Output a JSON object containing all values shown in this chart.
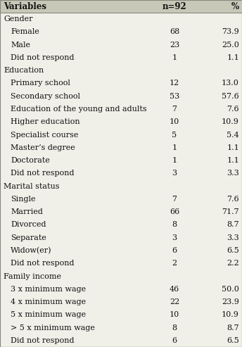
{
  "header": [
    "Variables",
    "n=92",
    "%"
  ],
  "rows": [
    {
      "label": "Gender",
      "indent": 0,
      "n": "",
      "pct": ""
    },
    {
      "label": "Female",
      "indent": 1,
      "n": "68",
      "pct": "73.9"
    },
    {
      "label": "Male",
      "indent": 1,
      "n": "23",
      "pct": "25.0"
    },
    {
      "label": "Did not respond",
      "indent": 1,
      "n": "1",
      "pct": "1.1"
    },
    {
      "label": "Education",
      "indent": 0,
      "n": "",
      "pct": ""
    },
    {
      "label": "Primary school",
      "indent": 1,
      "n": "12",
      "pct": "13.0"
    },
    {
      "label": "Secondary school",
      "indent": 1,
      "n": "53",
      "pct": "57.6"
    },
    {
      "label": "Education of the young and adults",
      "indent": 1,
      "n": "7",
      "pct": "7.6"
    },
    {
      "label": "Higher education",
      "indent": 1,
      "n": "10",
      "pct": "10.9"
    },
    {
      "label": "Specialist course",
      "indent": 1,
      "n": "5",
      "pct": "5.4"
    },
    {
      "label": "Master’s degree",
      "indent": 1,
      "n": "1",
      "pct": "1.1"
    },
    {
      "label": "Doctorate",
      "indent": 1,
      "n": "1",
      "pct": "1.1"
    },
    {
      "label": "Did not respond",
      "indent": 1,
      "n": "3",
      "pct": "3.3"
    },
    {
      "label": "Marital status",
      "indent": 0,
      "n": "",
      "pct": ""
    },
    {
      "label": "Single",
      "indent": 1,
      "n": "7",
      "pct": "7.6"
    },
    {
      "label": "Married",
      "indent": 1,
      "n": "66",
      "pct": "71.7"
    },
    {
      "label": "Divorced",
      "indent": 1,
      "n": "8",
      "pct": "8.7"
    },
    {
      "label": "Separate",
      "indent": 1,
      "n": "3",
      "pct": "3.3"
    },
    {
      "label": "Widow(er)",
      "indent": 1,
      "n": "6",
      "pct": "6.5"
    },
    {
      "label": "Did not respond",
      "indent": 1,
      "n": "2",
      "pct": "2.2"
    },
    {
      "label": "Family income",
      "indent": 0,
      "n": "",
      "pct": ""
    },
    {
      "label": "3 x minimum wage",
      "indent": 1,
      "n": "46",
      "pct": "50.0"
    },
    {
      "label": "4 x minimum wage",
      "indent": 1,
      "n": "22",
      "pct": "23.9"
    },
    {
      "label": "5 x minimum wage",
      "indent": 1,
      "n": "10",
      "pct": "10.9"
    },
    {
      "label": "> 5 x minimum wage",
      "indent": 1,
      "n": "8",
      "pct": "8.7"
    },
    {
      "label": "Did not respond",
      "indent": 1,
      "n": "6",
      "pct": "6.5"
    }
  ],
  "bg_color": "#f0efe8",
  "header_bg": "#c8c8b8",
  "line_color": "#888880",
  "text_color": "#111111",
  "header_fontsize": 8.5,
  "body_fontsize": 8.0,
  "indent_pts": 10
}
